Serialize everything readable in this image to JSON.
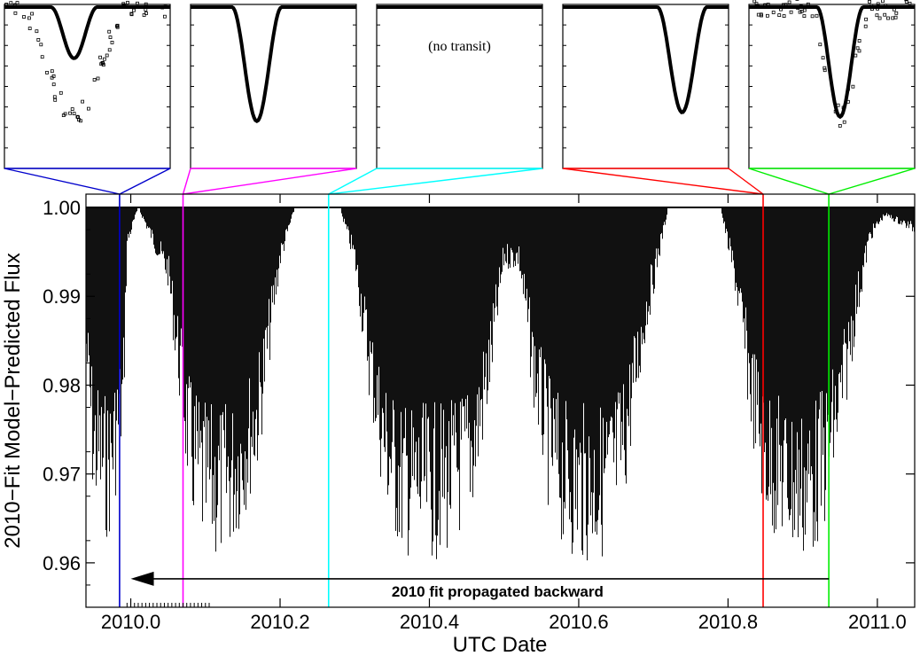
{
  "chart_data": {
    "type": "line",
    "title": "",
    "xlabel": "UTC Date",
    "ylabel": "2010−Fit Model−Predicted Flux",
    "xlim": [
      2009.94,
      2011.05
    ],
    "ylim": [
      0.955,
      1.0015
    ],
    "x_ticks": [
      2010.0,
      2010.2,
      2010.4,
      2010.6,
      2010.8,
      2011.0
    ],
    "x_tick_labels": [
      "2010.0",
      "2010.2",
      "2010.4",
      "2010.6",
      "2010.8",
      "2011.0"
    ],
    "y_ticks": [
      0.96,
      0.97,
      0.98,
      0.99,
      1.0
    ],
    "y_tick_labels": [
      "0.96",
      "0.97",
      "0.98",
      "0.99",
      "1.00"
    ],
    "series": [
      {
        "description_of_envelope": "Predicted transit depth minima envelope of densely sampled model light curve",
        "x": [
          2009.94,
          2009.95,
          2009.97,
          2009.99,
          2009.995,
          2010.01,
          2010.05,
          2010.08,
          2010.1,
          2010.12,
          2010.14,
          2010.17,
          2010.2,
          2010.22,
          2010.26,
          2010.28,
          2010.3,
          2010.32,
          2010.34,
          2010.36,
          2010.38,
          2010.4,
          2010.43,
          2010.46,
          2010.48,
          2010.5,
          2010.52,
          2010.54,
          2010.56,
          2010.58,
          2010.6,
          2010.62,
          2010.64,
          2010.66,
          2010.69,
          2010.72,
          2010.76,
          2010.79,
          2010.81,
          2010.83,
          2010.85,
          2010.87,
          2010.89,
          2010.91,
          2010.93,
          2010.95,
          2010.97,
          2010.99,
          2011.01,
          2011.05
        ],
        "y": [
          0.981,
          0.966,
          0.962,
          0.973,
          0.995,
          1.0,
          0.991,
          0.965,
          0.96,
          0.96,
          0.962,
          0.97,
          0.993,
          1.0,
          1.0,
          1.0,
          0.993,
          0.978,
          0.966,
          0.961,
          0.96,
          0.96,
          0.961,
          0.966,
          0.977,
          0.993,
          0.993,
          0.977,
          0.966,
          0.961,
          0.96,
          0.96,
          0.961,
          0.966,
          0.985,
          1.0,
          1.0,
          1.0,
          0.99,
          0.975,
          0.964,
          0.962,
          0.96,
          0.96,
          0.964,
          0.972,
          0.985,
          0.996,
          0.999,
          0.997
        ]
      }
    ],
    "epoch_markers": [
      {
        "x": 2009.985,
        "color": "#0000cc"
      },
      {
        "x": 2010.07,
        "color": "#ff00ff"
      },
      {
        "x": 2010.265,
        "color": "#00ffff"
      },
      {
        "x": 2010.847,
        "color": "#ff0000"
      },
      {
        "x": 2010.935,
        "color": "#00ee00"
      }
    ],
    "annotation": {
      "text": "2010 fit propagated backward",
      "x_start": 2010.935,
      "x_end": 2010.0,
      "y": 0.9582
    },
    "insets": [
      {
        "color": "#0000cc",
        "depth": 0.35,
        "center": 0.42,
        "width": 0.28,
        "note": ""
      },
      {
        "color": "#ff00ff",
        "depth": 0.78,
        "center": 0.4,
        "width": 0.3,
        "note": ""
      },
      {
        "color": "#00ffff",
        "depth": 0.0,
        "center": 0.5,
        "width": 0.3,
        "note": "(no transit)"
      },
      {
        "color": "#ff0000",
        "depth": 0.72,
        "center": 0.72,
        "width": 0.3,
        "note": ""
      },
      {
        "color": "#00ee00",
        "depth": 0.75,
        "center": 0.55,
        "width": 0.28,
        "note": ""
      }
    ]
  }
}
